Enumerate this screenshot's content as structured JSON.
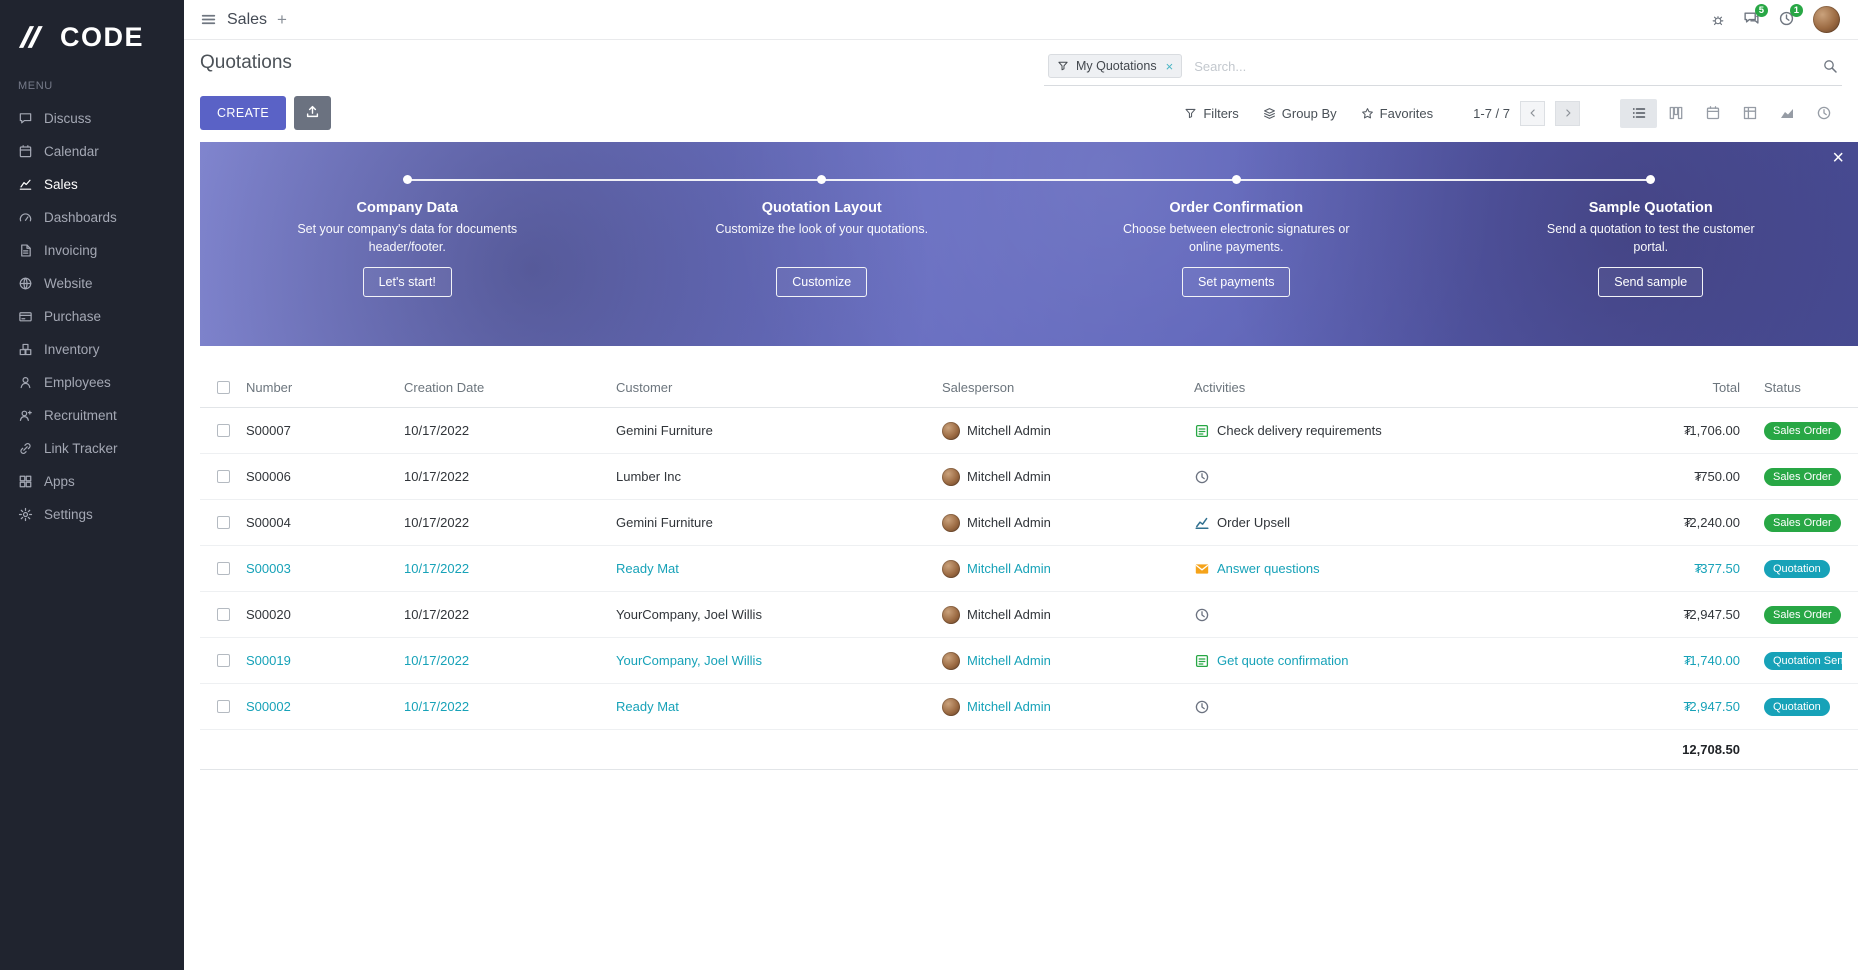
{
  "brand": {
    "logo_text": "CODE",
    "menu_label": "MENU"
  },
  "navbar": {
    "app_name": "Sales",
    "plus_label": "+",
    "message_count": "5",
    "activity_count": "1"
  },
  "sidebar": {
    "items": [
      {
        "label": "Discuss",
        "icon": "discuss",
        "active": false
      },
      {
        "label": "Calendar",
        "icon": "calendar",
        "active": false
      },
      {
        "label": "Sales",
        "icon": "sales",
        "active": true
      },
      {
        "label": "Dashboards",
        "icon": "dashboards",
        "active": false
      },
      {
        "label": "Invoicing",
        "icon": "invoicing",
        "active": false
      },
      {
        "label": "Website",
        "icon": "website",
        "active": false
      },
      {
        "label": "Purchase",
        "icon": "purchase",
        "active": false
      },
      {
        "label": "Inventory",
        "icon": "inventory",
        "active": false
      },
      {
        "label": "Employees",
        "icon": "employees",
        "active": false
      },
      {
        "label": "Recruitment",
        "icon": "recruitment",
        "active": false
      },
      {
        "label": "Link Tracker",
        "icon": "link",
        "active": false
      },
      {
        "label": "Apps",
        "icon": "apps",
        "active": false
      },
      {
        "label": "Settings",
        "icon": "settings",
        "active": false
      }
    ]
  },
  "control": {
    "title": "Quotations",
    "search": {
      "facet": "My Quotations",
      "placeholder": "Search..."
    },
    "create_label": "CREATE",
    "filters_label": "Filters",
    "groupby_label": "Group By",
    "favorites_label": "Favorites",
    "pager": "1-7 / 7",
    "views": [
      {
        "name": "list",
        "active": true
      },
      {
        "name": "kanban",
        "active": false
      },
      {
        "name": "calendar",
        "active": false
      },
      {
        "name": "pivot",
        "active": false
      },
      {
        "name": "graph",
        "active": false
      },
      {
        "name": "activity",
        "active": false
      }
    ]
  },
  "banner": {
    "steps": [
      {
        "title": "Company Data",
        "desc": "Set your company's data for documents header/footer.",
        "button": "Let's start!"
      },
      {
        "title": "Quotation Layout",
        "desc": "Customize the look of your quotations.",
        "button": "Customize"
      },
      {
        "title": "Order Confirmation",
        "desc": "Choose between electronic signatures or online payments.",
        "button": "Set payments"
      },
      {
        "title": "Sample Quotation",
        "desc": "Send a quotation to test the customer portal.",
        "button": "Send sample"
      }
    ]
  },
  "table": {
    "headers": [
      "Number",
      "Creation Date",
      "Customer",
      "Salesperson",
      "Activities",
      "Total",
      "Status"
    ],
    "currency": "₮",
    "rows": [
      {
        "number": "S00007",
        "date": "10/17/2022",
        "customer": "Gemini Furniture",
        "salesperson": "Mitchell Admin",
        "activity": {
          "icon": "tasks",
          "label": "Check delivery requirements"
        },
        "total": "1,706.00",
        "status": {
          "label": "Sales Order",
          "type": "success"
        },
        "highlight": false
      },
      {
        "number": "S00006",
        "date": "10/17/2022",
        "customer": "Lumber Inc",
        "salesperson": "Mitchell Admin",
        "activity": {
          "icon": "clock",
          "label": ""
        },
        "total": "750.00",
        "status": {
          "label": "Sales Order",
          "type": "success"
        },
        "highlight": false
      },
      {
        "number": "S00004",
        "date": "10/17/2022",
        "customer": "Gemini Furniture",
        "salesperson": "Mitchell Admin",
        "activity": {
          "icon": "chart",
          "label": "Order Upsell"
        },
        "total": "2,240.00",
        "status": {
          "label": "Sales Order",
          "type": "success"
        },
        "highlight": false
      },
      {
        "number": "S00003",
        "date": "10/17/2022",
        "customer": "Ready Mat",
        "salesperson": "Mitchell Admin",
        "activity": {
          "icon": "envelope",
          "label": "Answer questions"
        },
        "total": "377.50",
        "status": {
          "label": "Quotation",
          "type": "info"
        },
        "highlight": true
      },
      {
        "number": "S00020",
        "date": "10/17/2022",
        "customer": "YourCompany, Joel Willis",
        "salesperson": "Mitchell Admin",
        "activity": {
          "icon": "clock",
          "label": ""
        },
        "total": "2,947.50",
        "status": {
          "label": "Sales Order",
          "type": "success"
        },
        "highlight": false
      },
      {
        "number": "S00019",
        "date": "10/17/2022",
        "customer": "YourCompany, Joel Willis",
        "salesperson": "Mitchell Admin",
        "activity": {
          "icon": "tasks",
          "label": "Get quote confirmation"
        },
        "total": "1,740.00",
        "status": {
          "label": "Quotation Sent",
          "type": "info"
        },
        "highlight": true
      },
      {
        "number": "S00002",
        "date": "10/17/2022",
        "customer": "Ready Mat",
        "salesperson": "Mitchell Admin",
        "activity": {
          "icon": "clock",
          "label": ""
        },
        "total": "2,947.50",
        "status": {
          "label": "Quotation",
          "type": "info"
        },
        "highlight": true
      }
    ],
    "footer_total": "12,708.50"
  }
}
